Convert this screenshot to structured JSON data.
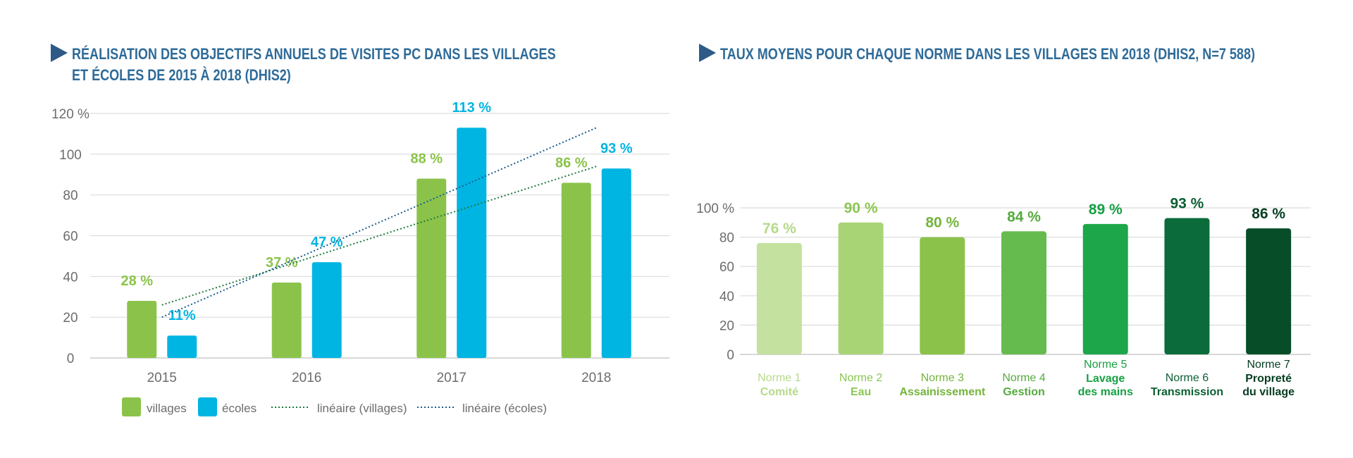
{
  "left": {
    "title_line1": "RÉALISATION DES OBJECTIFS ANNUELS DE VISITES PC DANS LES VILLAGES",
    "title_line2": "ET ÉCOLES DE 2015 À 2018 (DHIS2)"
  },
  "right": {
    "title": "TAUX MOYENS POUR CHAQUE NORME DANS LES VILLAGES EN 2018 (DHIS2, N=7 588)"
  },
  "chart_data": [
    {
      "type": "bar",
      "title": "RÉALISATION DES OBJECTIFS ANNUELS DE VISITES PC DANS LES VILLAGES ET ÉCOLES DE 2015 À 2018 (DHIS2)",
      "categories": [
        "2015",
        "2016",
        "2017",
        "2018"
      ],
      "series": [
        {
          "name": "villages",
          "color": "#8bc34a",
          "values": [
            28,
            37,
            88,
            86
          ],
          "labels": [
            "28 %",
            "37 %",
            "88 %",
            "86 %"
          ]
        },
        {
          "name": "écoles",
          "color": "#00b5e2",
          "values": [
            11,
            47,
            113,
            93
          ],
          "labels": [
            "11%",
            "47 %",
            "113 %",
            "93 %"
          ]
        }
      ],
      "trendlines": [
        {
          "name": "linéaire (villages)",
          "color": "#1e7a3e",
          "start": 26,
          "end": 94
        },
        {
          "name": "linéaire (écoles)",
          "color": "#1a5d8f",
          "start": 20,
          "end": 113
        }
      ],
      "y_ticks": [
        "0",
        "20",
        "40",
        "60",
        "80",
        "100",
        "120 %"
      ],
      "ylim": [
        0,
        120
      ],
      "legend": [
        "villages",
        "écoles",
        "linéaire (villages)",
        "linéaire (écoles)"
      ]
    },
    {
      "type": "bar",
      "title": "TAUX MOYENS POUR CHAQUE NORME DANS LES VILLAGES EN 2018 (DHIS2, N=7 588)",
      "bars": [
        {
          "norm": "Norme 1",
          "name": "Comité",
          "value": 76,
          "label": "76 %",
          "color": "#c5e1a0",
          "text_color": "#b5da8a"
        },
        {
          "norm": "Norme 2",
          "name": "Eau",
          "value": 90,
          "label": "90 %",
          "color": "#a9d475",
          "text_color": "#8cc653"
        },
        {
          "norm": "Norme 3",
          "name": "Assainissement",
          "value": 80,
          "label": "80 %",
          "color": "#8bc34a",
          "text_color": "#74b43c"
        },
        {
          "norm": "Norme 4",
          "name": "Gestion",
          "value": 84,
          "label": "84 %",
          "color": "#66bb4e",
          "text_color": "#55aa3e"
        },
        {
          "norm": "Norme 5",
          "name": "Lavage des mains",
          "value": 89,
          "label": "89 %",
          "color": "#1ea64a",
          "text_color": "#17a043"
        },
        {
          "norm": "Norme 6",
          "name": "Transmission",
          "value": 93,
          "label": "93 %",
          "color": "#0b6b3a",
          "text_color": "#0b5e33"
        },
        {
          "norm": "Norme 7",
          "name": "Propreté du village",
          "value": 86,
          "label": "86 %",
          "color": "#074d28",
          "text_color": "#053d20"
        }
      ],
      "y_ticks": [
        "0",
        "20",
        "40",
        "60",
        "80",
        "100 %"
      ],
      "ylim": [
        0,
        100
      ]
    }
  ]
}
